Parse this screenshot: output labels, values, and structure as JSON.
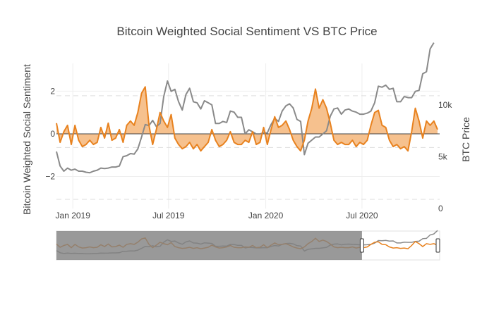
{
  "chart_data": {
    "type": "line",
    "title": "Bitcoin Weighted Social Sentiment VS BTC Price",
    "ylabel": "Bitcoin Weighted Social Sentiment",
    "y2label": "BTC Price",
    "xlim": [
      "2018-12-01",
      "2020-11-25"
    ],
    "ylim": [
      -3.5,
      3.3
    ],
    "y2lim": [
      0,
      14000
    ],
    "x_ticks": [
      {
        "date": "2019-01-01",
        "label": "Jan 2019"
      },
      {
        "date": "2019-07-01",
        "label": "Jul 2019"
      },
      {
        "date": "2020-01-01",
        "label": "Jan 2020"
      },
      {
        "date": "2020-07-01",
        "label": "Jul 2020"
      }
    ],
    "y_ticks": [
      {
        "value": 2,
        "label": "2"
      },
      {
        "value": 0,
        "label": "0"
      },
      {
        "value": -2,
        "label": "−2"
      }
    ],
    "y2_ticks": [
      {
        "value": 10000,
        "label": "10k"
      },
      {
        "value": 5000,
        "label": "5k"
      },
      {
        "value": 0,
        "label": "0"
      }
    ],
    "grid": true,
    "colors": {
      "sentiment": "#e8821f",
      "sentiment_fill": "#f5b67a",
      "price": "#8a8a8a",
      "zero_line": "#444444"
    },
    "series": [
      {
        "axis": "y",
        "x": [
          "2018-12-01",
          "2018-12-08",
          "2018-12-15",
          "2018-12-22",
          "2018-12-29",
          "2019-01-05",
          "2019-01-12",
          "2019-01-19",
          "2019-01-26",
          "2019-02-02",
          "2019-02-09",
          "2019-02-16",
          "2019-02-23",
          "2019-03-02",
          "2019-03-09",
          "2019-03-16",
          "2019-03-23",
          "2019-03-30",
          "2019-04-06",
          "2019-04-13",
          "2019-04-20",
          "2019-04-27",
          "2019-05-04",
          "2019-05-11",
          "2019-05-18",
          "2019-05-25",
          "2019-06-01",
          "2019-06-08",
          "2019-06-15",
          "2019-06-22",
          "2019-06-29",
          "2019-07-06",
          "2019-07-13",
          "2019-07-20",
          "2019-07-27",
          "2019-08-03",
          "2019-08-10",
          "2019-08-17",
          "2019-08-24",
          "2019-08-31",
          "2019-09-07",
          "2019-09-14",
          "2019-09-21",
          "2019-09-28",
          "2019-10-05",
          "2019-10-12",
          "2019-10-19",
          "2019-10-26",
          "2019-11-02",
          "2019-11-09",
          "2019-11-16",
          "2019-11-23",
          "2019-11-30",
          "2019-12-07",
          "2019-12-14",
          "2019-12-21",
          "2019-12-28",
          "2020-01-04",
          "2020-01-11",
          "2020-01-18",
          "2020-01-25",
          "2020-02-01",
          "2020-02-08",
          "2020-02-15",
          "2020-02-22",
          "2020-02-29",
          "2020-03-07",
          "2020-03-14",
          "2020-03-21",
          "2020-03-28",
          "2020-04-04",
          "2020-04-11",
          "2020-04-18",
          "2020-04-25",
          "2020-05-02",
          "2020-05-09",
          "2020-05-16",
          "2020-05-23",
          "2020-05-30",
          "2020-06-06",
          "2020-06-13",
          "2020-06-20",
          "2020-06-27",
          "2020-07-04",
          "2020-07-11",
          "2020-07-18",
          "2020-07-25",
          "2020-08-01",
          "2020-08-08",
          "2020-08-15",
          "2020-08-22",
          "2020-08-29",
          "2020-09-05",
          "2020-09-12",
          "2020-09-19",
          "2020-09-26",
          "2020-10-03",
          "2020-10-10",
          "2020-10-17",
          "2020-10-24",
          "2020-10-31",
          "2020-11-07",
          "2020-11-14",
          "2020-11-21"
        ],
        "values": [
          0.5,
          -0.4,
          0.1,
          0.4,
          -0.5,
          0.4,
          -0.3,
          -0.6,
          -0.5,
          -0.3,
          -0.5,
          -0.4,
          0.3,
          -0.2,
          0.5,
          -0.3,
          -0.2,
          0.2,
          -0.4,
          0.4,
          0.6,
          0.4,
          1.0,
          1.9,
          2.2,
          0.4,
          -0.5,
          0.2,
          1.0,
          0.6,
          0.3,
          0.9,
          -0.2,
          -0.5,
          -0.7,
          -0.6,
          -0.4,
          -0.7,
          -0.5,
          -0.8,
          -0.6,
          -0.4,
          0.2,
          -0.3,
          -0.6,
          -0.5,
          -0.3,
          0.1,
          -0.4,
          -0.5,
          -0.5,
          -0.3,
          -0.4,
          0.1,
          -0.5,
          -0.4,
          0.3,
          -0.5,
          0.2,
          0.8,
          0.3,
          0.4,
          0.6,
          0.2,
          -0.3,
          -0.6,
          -0.8,
          -0.3,
          0.6,
          1.2,
          2.1,
          1.2,
          1.6,
          1.2,
          0.5,
          -0.3,
          -0.5,
          -0.4,
          -0.5,
          -0.5,
          -0.3,
          -0.6,
          -0.4,
          -0.5,
          -0.3,
          0.4,
          1.0,
          1.1,
          0.4,
          0.3,
          -0.3,
          -0.6,
          -0.5,
          -0.7,
          -0.6,
          -0.8,
          0.1,
          1.2,
          0.6,
          -0.2,
          0.6,
          0.4,
          0.6,
          0.2
        ]
      },
      {
        "axis": "y2",
        "x": [
          "2018-12-01",
          "2018-12-08",
          "2018-12-15",
          "2018-12-22",
          "2018-12-29",
          "2019-01-05",
          "2019-01-12",
          "2019-01-19",
          "2019-01-26",
          "2019-02-02",
          "2019-02-09",
          "2019-02-16",
          "2019-02-23",
          "2019-03-02",
          "2019-03-09",
          "2019-03-16",
          "2019-03-23",
          "2019-03-30",
          "2019-04-06",
          "2019-04-13",
          "2019-04-20",
          "2019-04-27",
          "2019-05-04",
          "2019-05-11",
          "2019-05-18",
          "2019-05-25",
          "2019-06-01",
          "2019-06-08",
          "2019-06-15",
          "2019-06-22",
          "2019-06-29",
          "2019-07-06",
          "2019-07-13",
          "2019-07-20",
          "2019-07-27",
          "2019-08-03",
          "2019-08-10",
          "2019-08-17",
          "2019-08-24",
          "2019-08-31",
          "2019-09-07",
          "2019-09-14",
          "2019-09-21",
          "2019-09-28",
          "2019-10-05",
          "2019-10-12",
          "2019-10-19",
          "2019-10-26",
          "2019-11-02",
          "2019-11-09",
          "2019-11-16",
          "2019-11-23",
          "2019-11-30",
          "2019-12-07",
          "2019-12-14",
          "2019-12-21",
          "2019-12-28",
          "2020-01-04",
          "2020-01-11",
          "2020-01-18",
          "2020-01-25",
          "2020-02-01",
          "2020-02-08",
          "2020-02-15",
          "2020-02-22",
          "2020-02-29",
          "2020-03-07",
          "2020-03-14",
          "2020-03-21",
          "2020-03-28",
          "2020-04-04",
          "2020-04-11",
          "2020-04-18",
          "2020-04-25",
          "2020-05-02",
          "2020-05-09",
          "2020-05-16",
          "2020-05-23",
          "2020-05-30",
          "2020-06-06",
          "2020-06-13",
          "2020-06-20",
          "2020-06-27",
          "2020-07-04",
          "2020-07-11",
          "2020-07-18",
          "2020-07-25",
          "2020-08-01",
          "2020-08-08",
          "2020-08-15",
          "2020-08-22",
          "2020-08-29",
          "2020-09-05",
          "2020-09-12",
          "2020-09-19",
          "2020-09-26",
          "2020-10-03",
          "2020-10-10",
          "2020-10-17",
          "2020-10-24",
          "2020-10-31",
          "2020-11-07",
          "2020-11-14",
          "2020-11-21"
        ],
        "values": [
          5500,
          4100,
          3600,
          3900,
          3700,
          3800,
          3600,
          3600,
          3500,
          3450,
          3600,
          3700,
          3900,
          3850,
          3900,
          4000,
          4000,
          4100,
          5000,
          5100,
          5300,
          5250,
          5750,
          6900,
          8100,
          8000,
          8500,
          7900,
          8200,
          10800,
          12300,
          11300,
          11500,
          10300,
          9500,
          11000,
          11600,
          10300,
          10200,
          9600,
          10400,
          10200,
          10000,
          8200,
          8200,
          8400,
          8300,
          9400,
          9300,
          8800,
          8800,
          7200,
          7600,
          7400,
          7200,
          7200,
          7300,
          7300,
          8100,
          8700,
          8400,
          9400,
          9900,
          10100,
          9700,
          8600,
          8400,
          5200,
          6300,
          6600,
          6900,
          6900,
          7200,
          7500,
          8900,
          9600,
          9700,
          9100,
          9500,
          9600,
          9400,
          9300,
          9100,
          9100,
          9200,
          9400,
          10200,
          11800,
          11700,
          11900,
          11500,
          11600,
          10300,
          10300,
          10800,
          10700,
          10700,
          11300,
          11400,
          13000,
          13200,
          15400,
          16000,
          18200
        ]
      }
    ],
    "range_slider": {
      "window": [
        "2020-07-01",
        "2020-11-25"
      ]
    }
  }
}
